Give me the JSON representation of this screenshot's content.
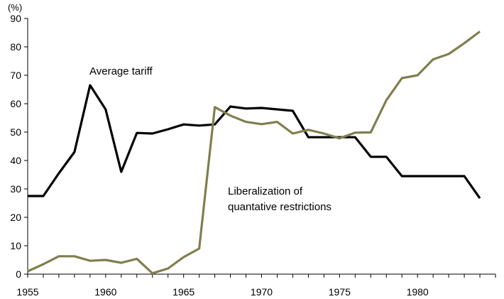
{
  "chart_data": {
    "type": "line",
    "title": "",
    "xlabel": "",
    "ylabel": "",
    "y_unit": "(%)",
    "xlim": [
      1955,
      1985
    ],
    "ylim": [
      0,
      90
    ],
    "x_ticks": [
      1955,
      1960,
      1965,
      1970,
      1975,
      1980
    ],
    "y_ticks": [
      0,
      10,
      20,
      30,
      40,
      50,
      60,
      70,
      80,
      90
    ],
    "grid": false,
    "legend": "none",
    "x": [
      1955,
      1956,
      1957,
      1958,
      1959,
      1960,
      1961,
      1962,
      1963,
      1964,
      1965,
      1966,
      1967,
      1968,
      1969,
      1970,
      1971,
      1972,
      1973,
      1974,
      1975,
      1976,
      1977,
      1978,
      1979,
      1980,
      1981,
      1982,
      1983,
      1984
    ],
    "series": [
      {
        "name": "Average tariff",
        "color": "#000000",
        "values": [
          27.5,
          27.5,
          35.5,
          43,
          66.5,
          58,
          36,
          49.7,
          49.5,
          51,
          52.7,
          52.3,
          52.7,
          59,
          58.3,
          58.5,
          58,
          57.5,
          48.2,
          48.2,
          48.2,
          48.2,
          41.3,
          41.3,
          34.5,
          34.5,
          34.5,
          34.5,
          34.5,
          26.7
        ]
      },
      {
        "name": "Liberalization of quantative restrictions",
        "color": "#7f7f4f",
        "values": [
          1,
          3.5,
          6.3,
          6.3,
          4.7,
          5,
          4,
          5.4,
          0.3,
          2,
          6,
          9,
          58.8,
          55.8,
          53.6,
          52.8,
          53.6,
          49.5,
          50.8,
          49.5,
          47.8,
          49.8,
          49.9,
          61.2,
          69,
          70,
          75.6,
          77.5,
          81.3,
          85.4
        ]
      }
    ],
    "annotations": [
      {
        "series_index": 0,
        "text": "Average tariff"
      },
      {
        "series_index": 1,
        "lines": [
          "Liberalization of",
          "quantative restrictions"
        ]
      }
    ]
  }
}
